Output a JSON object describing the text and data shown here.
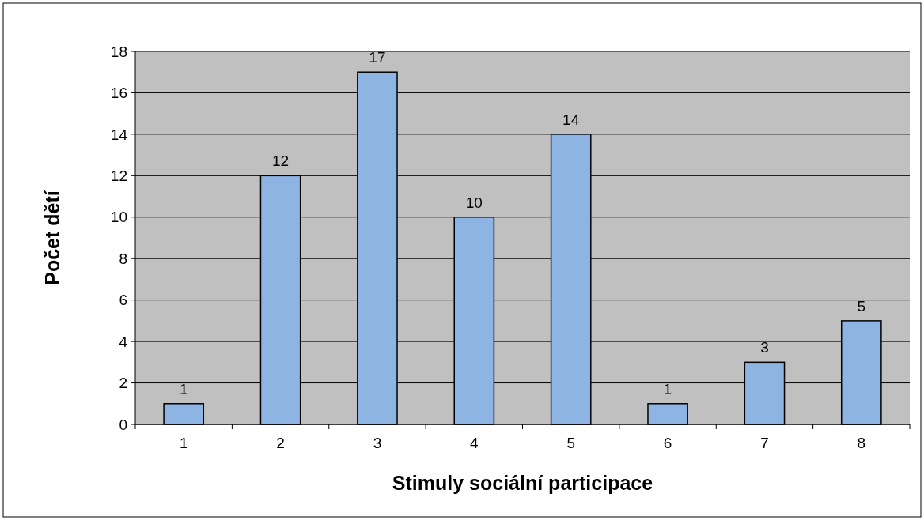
{
  "chart_data": {
    "type": "bar",
    "xlabel": "Stimuly sociální participace",
    "ylabel": "Počet dětí",
    "categories": [
      "1",
      "2",
      "3",
      "4",
      "5",
      "6",
      "7",
      "8"
    ],
    "values": [
      1,
      12,
      17,
      10,
      14,
      1,
      3,
      5
    ],
    "color": "#8eb4e3",
    "ylim": [
      0,
      18
    ],
    "yticks": [
      0,
      2,
      4,
      6,
      8,
      10,
      12,
      14,
      16,
      18
    ],
    "grid": "y",
    "data_labels": true
  }
}
